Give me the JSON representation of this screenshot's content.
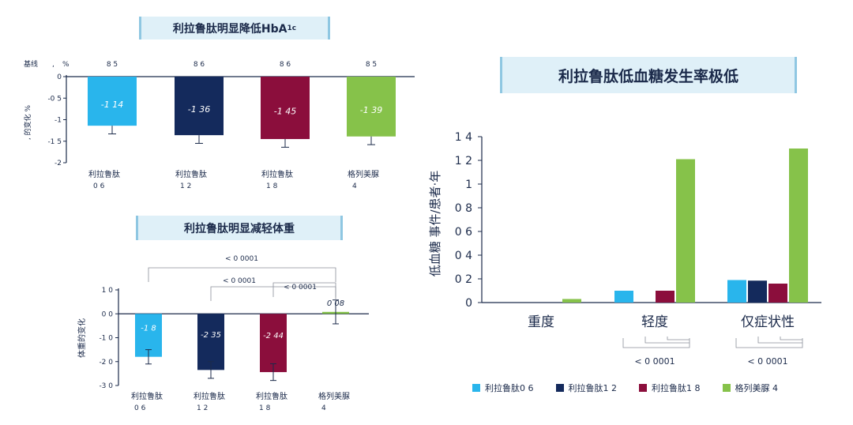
{
  "colors": {
    "sky": "#29b5ec",
    "navy": "#142a5c",
    "maroon": "#8b0e3c",
    "green": "#86c24a",
    "axis": "#1b2a4a",
    "title_bg": "#dff0f8"
  },
  "chart_data": [
    {
      "type": "bar",
      "title": "利拉鲁肽明显降低HbA",
      "title_sub": "1c",
      "baseline_label": "基线",
      "baseline_sep": ",",
      "baseline_unit": "%",
      "baseline_values": [
        "8 5",
        "8 6",
        "8 6",
        "8 5"
      ],
      "ylabel": ", 的变化 %",
      "categories": [
        [
          "利拉鲁肽",
          "0 6"
        ],
        [
          "利拉鲁肽",
          "1 2"
        ],
        [
          "利拉鲁肽",
          "1 8"
        ],
        [
          "格列美脲",
          "4"
        ]
      ],
      "values": [
        -1.14,
        -1.36,
        -1.45,
        -1.39
      ],
      "value_labels": [
        "-1 14",
        "-1 36",
        "-1 45",
        "-1 39"
      ],
      "errors": [
        0.19,
        0.19,
        0.19,
        0.19
      ],
      "yticks": [
        0,
        -0.5,
        -1,
        -1.5,
        -2
      ],
      "ytick_labels": [
        "0",
        "-0 5",
        "-1",
        "-1 5",
        "-2"
      ],
      "ylim": [
        -2,
        0
      ],
      "colors": [
        "#29b5ec",
        "#142a5c",
        "#8b0e3c",
        "#86c24a"
      ]
    },
    {
      "type": "bar",
      "title": "利拉鲁肽明显减轻体重",
      "ylabel": "体重的变化",
      "categories": [
        [
          "利拉鲁肽",
          "0 6"
        ],
        [
          "利拉鲁肽",
          "1 2"
        ],
        [
          "利拉鲁肽",
          "1 8"
        ],
        [
          "格列美脲",
          "4"
        ]
      ],
      "values": [
        -1.8,
        -2.35,
        -2.44,
        0.08
      ],
      "value_labels": [
        "-1 8",
        "-2 35",
        "-2 44",
        "0 08"
      ],
      "errors": [
        0.3,
        0.35,
        0.35,
        0.5
      ],
      "yticks": [
        1,
        0,
        -1,
        -2,
        -3
      ],
      "ytick_labels": [
        "1 0",
        "0 0",
        "-1 0",
        "-2 0",
        "-3 0"
      ],
      "ylim": [
        -3,
        1
      ],
      "colors": [
        "#29b5ec",
        "#142a5c",
        "#8b0e3c",
        "#86c24a"
      ],
      "significance": [
        "< 0 0001",
        "< 0 0001",
        "< 0 0001"
      ]
    },
    {
      "type": "bar",
      "title": "利拉鲁肽低血糖发生率极低",
      "ylabel": "低血糖 事件/患者·年",
      "categories": [
        "重度",
        "轻度",
        "仅症状性"
      ],
      "series": [
        {
          "name": "利拉鲁肽0 6",
          "color": "#29b5ec",
          "values": [
            0,
            0.1,
            0.19
          ]
        },
        {
          "name": "利拉鲁肽1 2",
          "color": "#142a5c",
          "values": [
            0,
            0,
            0.185
          ]
        },
        {
          "name": "利拉鲁肽1 8",
          "color": "#8b0e3c",
          "values": [
            0,
            0.1,
            0.16
          ]
        },
        {
          "name": "格列美脲 4",
          "color": "#86c24a",
          "values": [
            0.03,
            1.21,
            1.3
          ]
        }
      ],
      "yticks": [
        0,
        0.2,
        0.4,
        0.6,
        0.8,
        1,
        1.2,
        1.4
      ],
      "ytick_labels": [
        "0",
        "0 2",
        "0 4",
        "0 6",
        "0 8",
        "1",
        "1 2",
        "1 4"
      ],
      "ylim": [
        0,
        1.4
      ],
      "significance": [
        "< 0 0001",
        "< 0 0001"
      ]
    }
  ]
}
